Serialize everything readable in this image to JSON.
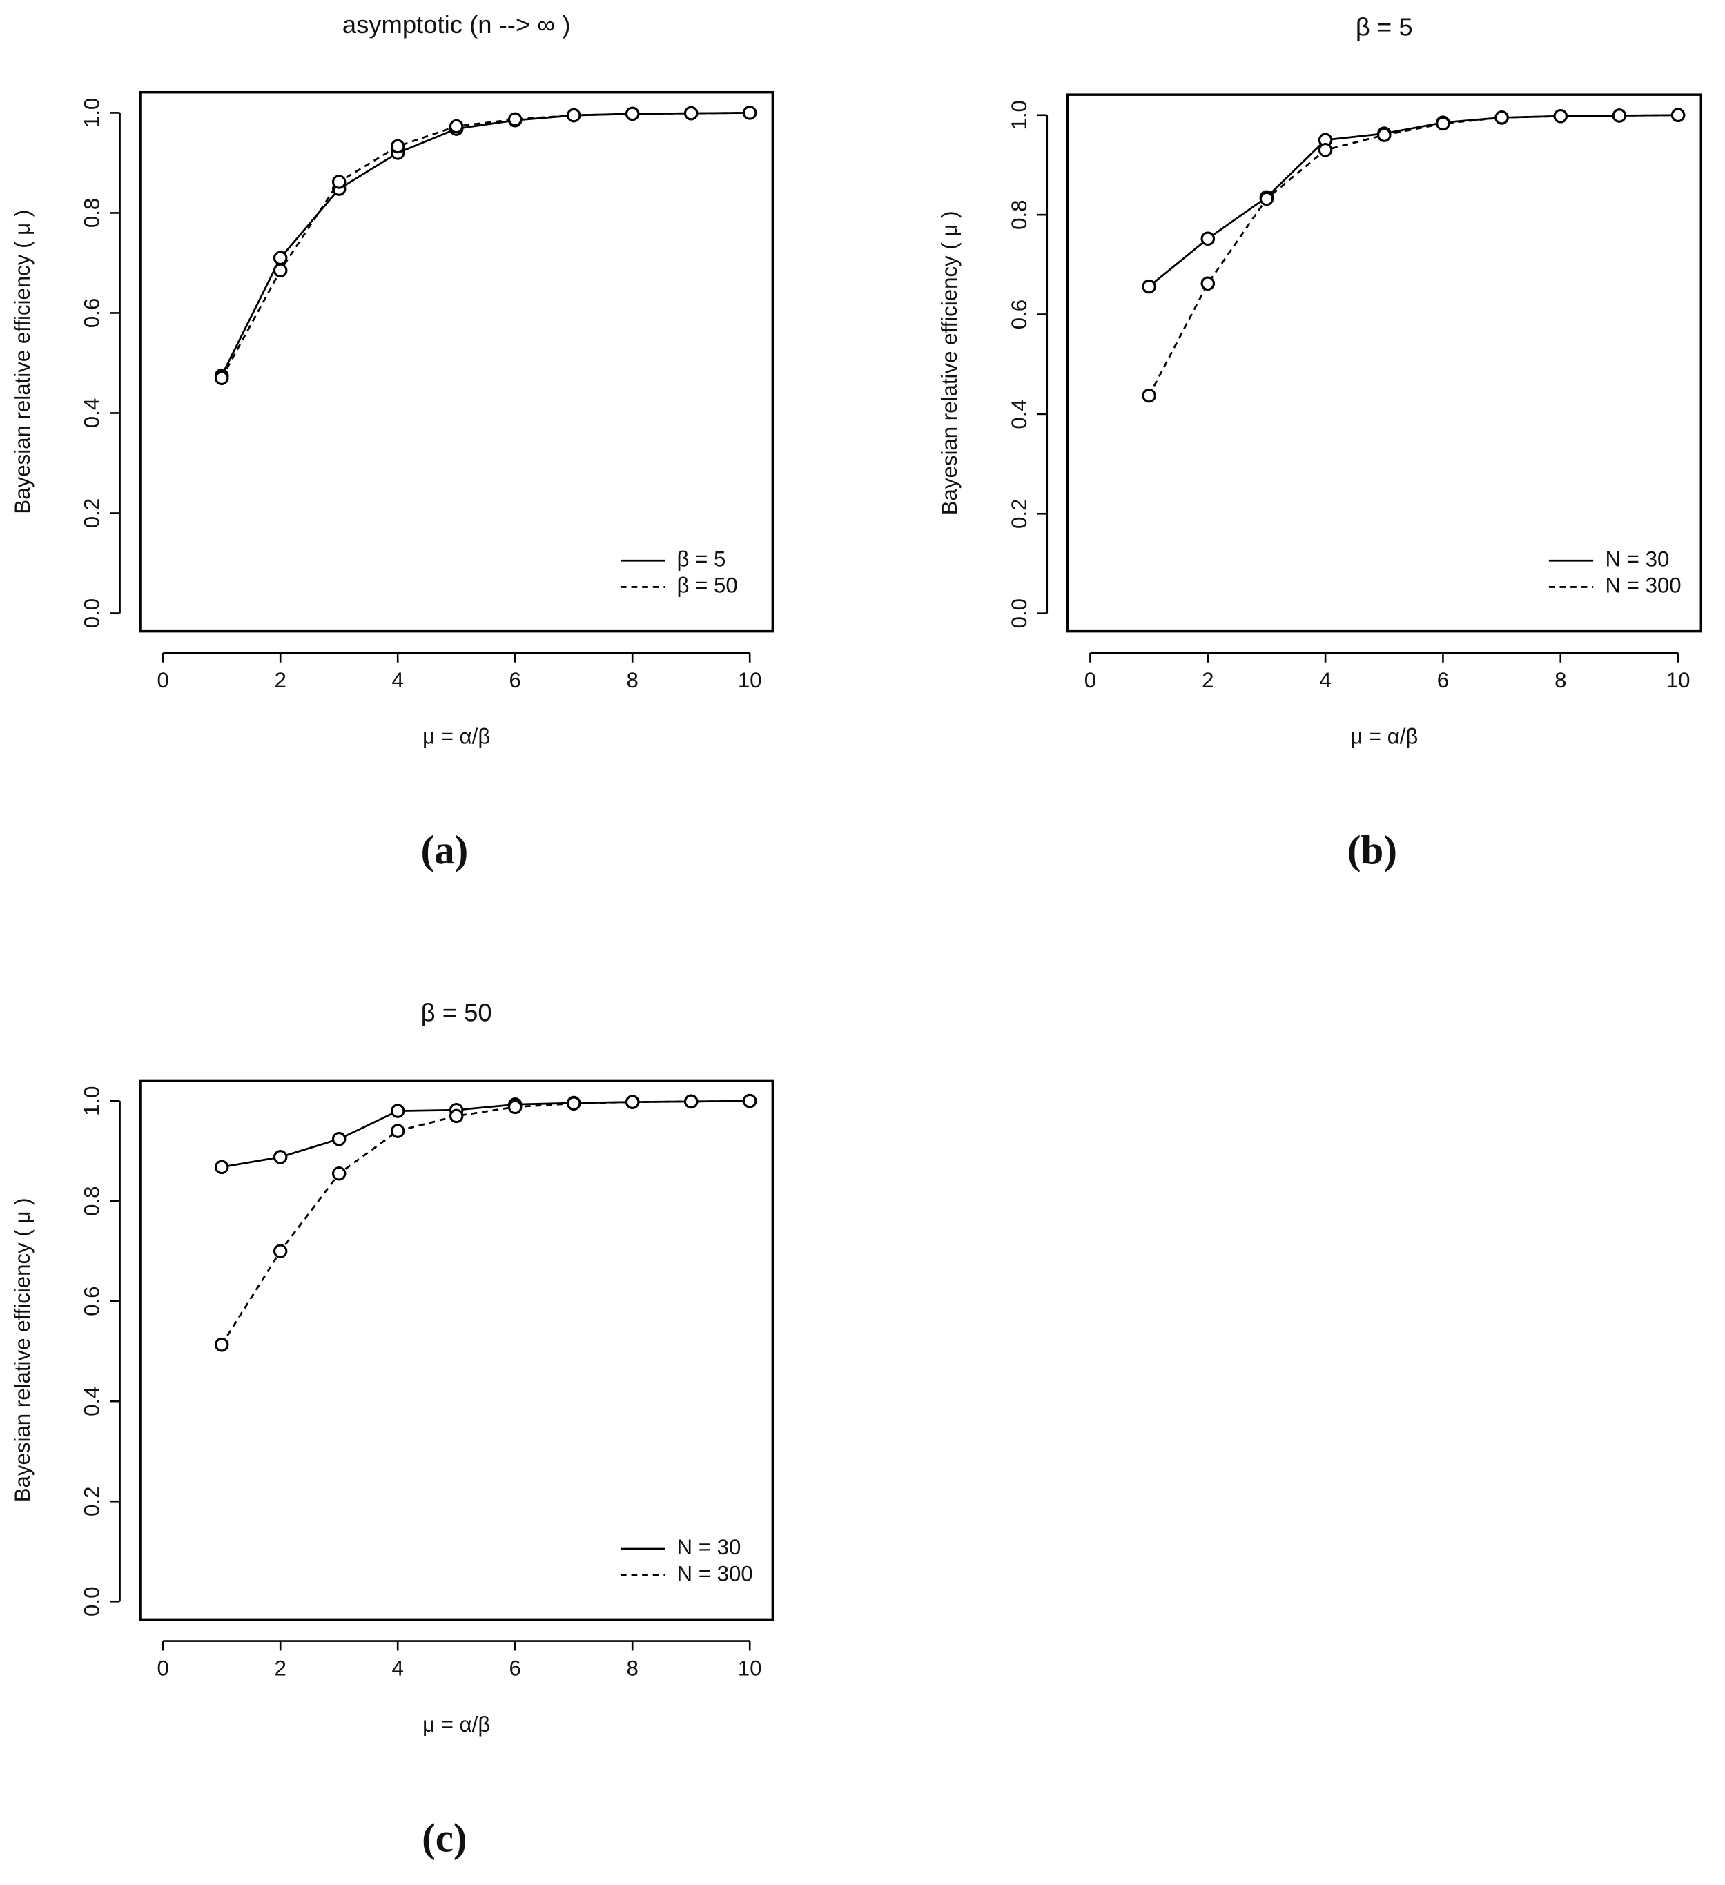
{
  "chart_data": [
    {
      "type": "line",
      "title": "asymptotic (n --> ∞ )",
      "panel_label": "(a)",
      "xlabel": "μ = α/β",
      "ylabel": "Bayesian relative efficiency ( μ )",
      "x": [
        1,
        2,
        3,
        4,
        5,
        6,
        7,
        8,
        9,
        10
      ],
      "series": [
        {
          "name": "β = 5",
          "color": "#000000",
          "linestyle": "solid",
          "values": [
            0.475,
            0.71,
            0.848,
            0.92,
            0.968,
            0.985,
            0.995,
            0.998,
            0.999,
            1.0
          ]
        },
        {
          "name": "β = 50",
          "color": "#000000",
          "linestyle": "dashed",
          "values": [
            0.47,
            0.685,
            0.862,
            0.933,
            0.973,
            0.987,
            0.995,
            0.998,
            0.999,
            1.0
          ]
        }
      ],
      "xlim": [
        -0.39,
        10.39
      ],
      "ylim": [
        -0.036,
        1.041
      ],
      "xticks": [
        0,
        2,
        4,
        6,
        8,
        10
      ],
      "yticks": [
        {
          "value": 0,
          "label": "0.0"
        },
        0.2,
        0.4,
        0.6,
        0.8,
        {
          "value": 1,
          "label": "1.0"
        }
      ],
      "legend": "bottom-right"
    },
    {
      "type": "line",
      "title": "β = 5",
      "panel_label": "(b)",
      "xlabel": "μ = α/β",
      "ylabel": "Bayesian relative efficiency ( μ )",
      "x": [
        1,
        2,
        3,
        4,
        5,
        6,
        7,
        8,
        9,
        10
      ],
      "series": [
        {
          "name": "N = 30",
          "color": "#000000",
          "linestyle": "solid",
          "values": [
            0.656,
            0.752,
            0.835,
            0.95,
            0.963,
            0.985,
            0.995,
            0.998,
            0.999,
            1.0
          ]
        },
        {
          "name": "N = 300",
          "color": "#000000",
          "linestyle": "dashed",
          "values": [
            0.437,
            0.662,
            0.832,
            0.93,
            0.96,
            0.983,
            0.995,
            0.998,
            0.999,
            1.0
          ]
        }
      ],
      "xlim": [
        -0.39,
        10.39
      ],
      "ylim": [
        -0.036,
        1.041
      ],
      "xticks": [
        0,
        2,
        4,
        6,
        8,
        10
      ],
      "yticks": [
        {
          "value": 0,
          "label": "0.0"
        },
        0.2,
        0.4,
        0.6,
        0.8,
        {
          "value": 1,
          "label": "1.0"
        }
      ],
      "legend": "bottom-right"
    },
    {
      "type": "line",
      "title": "β = 50",
      "panel_label": "(c)",
      "xlabel": "μ = α/β",
      "ylabel": "Bayesian relative efficiency ( μ )",
      "x": [
        1,
        2,
        3,
        4,
        5,
        6,
        7,
        8,
        9,
        10
      ],
      "series": [
        {
          "name": "N = 30",
          "color": "#000000",
          "linestyle": "solid",
          "values": [
            0.868,
            0.888,
            0.924,
            0.98,
            0.982,
            0.993,
            0.996,
            0.998,
            0.999,
            1.0
          ]
        },
        {
          "name": "N = 300",
          "color": "#000000",
          "linestyle": "dashed",
          "values": [
            0.513,
            0.7,
            0.855,
            0.94,
            0.97,
            0.988,
            0.995,
            0.998,
            0.999,
            1.0
          ]
        }
      ],
      "xlim": [
        -0.39,
        10.39
      ],
      "ylim": [
        -0.036,
        1.041
      ],
      "xticks": [
        0,
        2,
        4,
        6,
        8,
        10
      ],
      "yticks": [
        {
          "value": 0,
          "label": "0.0"
        },
        0.2,
        0.4,
        0.6,
        0.8,
        {
          "value": 1,
          "label": "1.0"
        }
      ],
      "legend": "bottom-right"
    }
  ]
}
